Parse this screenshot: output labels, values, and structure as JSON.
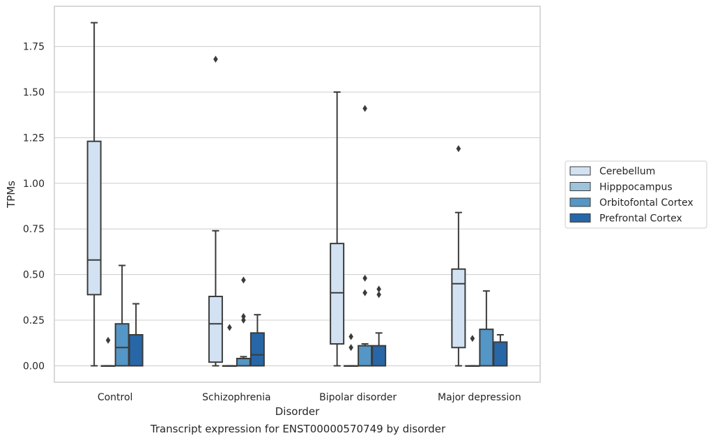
{
  "caption": "Transcript expression for ENST00000570749 by disorder",
  "chart_data": {
    "type": "box",
    "xlabel": "Disorder",
    "ylabel": "TPMs",
    "ylim": [
      -0.09,
      1.97
    ],
    "yticks": [
      0.0,
      0.25,
      0.5,
      0.75,
      1.0,
      1.25,
      1.5,
      1.75
    ],
    "ytick_labels": [
      "0.00",
      "0.25",
      "0.50",
      "0.75",
      "1.00",
      "1.25",
      "1.50",
      "1.75"
    ],
    "grid": "horizontal",
    "legend_position": "right",
    "categories": [
      "Control",
      "Schizophrenia",
      "Bipolar disorder",
      "Major depression"
    ],
    "series": [
      {
        "name": "Cerebellum",
        "color": "#d3e2f2",
        "boxes": [
          {
            "whislo": 0.0,
            "q1": 0.39,
            "med": 0.58,
            "q3": 1.23,
            "whishi": 1.88,
            "fliers": []
          },
          {
            "whislo": 0.0,
            "q1": 0.02,
            "med": 0.23,
            "q3": 0.38,
            "whishi": 0.74,
            "fliers": [
              1.68
            ]
          },
          {
            "whislo": 0.0,
            "q1": 0.12,
            "med": 0.4,
            "q3": 0.67,
            "whishi": 1.5,
            "fliers": []
          },
          {
            "whislo": 0.0,
            "q1": 0.1,
            "med": 0.45,
            "q3": 0.53,
            "whishi": 0.84,
            "fliers": [
              1.19
            ]
          }
        ]
      },
      {
        "name": "Hipppocampus",
        "color": "#9dc3dd",
        "boxes": [
          {
            "whislo": 0.0,
            "q1": 0.0,
            "med": 0.0,
            "q3": 0.0,
            "whishi": 0.0,
            "fliers": [
              0.14
            ]
          },
          {
            "whislo": 0.0,
            "q1": 0.0,
            "med": 0.0,
            "q3": 0.0,
            "whishi": 0.0,
            "fliers": [
              0.21
            ]
          },
          {
            "whislo": 0.0,
            "q1": 0.0,
            "med": 0.0,
            "q3": 0.0,
            "whishi": 0.0,
            "fliers": [
              0.16,
              0.1
            ]
          },
          {
            "whislo": 0.0,
            "q1": 0.0,
            "med": 0.0,
            "q3": 0.0,
            "whishi": 0.0,
            "fliers": [
              0.15
            ]
          }
        ]
      },
      {
        "name": "Orbitofontal Cortex",
        "color": "#5496c5",
        "boxes": [
          {
            "whislo": 0.0,
            "q1": 0.0,
            "med": 0.1,
            "q3": 0.23,
            "whishi": 0.55,
            "fliers": []
          },
          {
            "whislo": 0.0,
            "q1": 0.0,
            "med": 0.0,
            "q3": 0.04,
            "whishi": 0.05,
            "fliers": [
              0.47,
              0.27,
              0.25
            ]
          },
          {
            "whislo": 0.0,
            "q1": 0.0,
            "med": 0.0,
            "q3": 0.11,
            "whishi": 0.12,
            "fliers": [
              1.41,
              0.48,
              0.4
            ]
          },
          {
            "whislo": 0.0,
            "q1": 0.0,
            "med": 0.0,
            "q3": 0.2,
            "whishi": 0.41,
            "fliers": []
          }
        ]
      },
      {
        "name": "Prefrontal Cortex",
        "color": "#2767a8",
        "boxes": [
          {
            "whislo": 0.0,
            "q1": 0.0,
            "med": 0.0,
            "q3": 0.17,
            "whishi": 0.34,
            "fliers": []
          },
          {
            "whislo": 0.0,
            "q1": 0.0,
            "med": 0.06,
            "q3": 0.18,
            "whishi": 0.28,
            "fliers": []
          },
          {
            "whislo": 0.0,
            "q1": 0.0,
            "med": 0.0,
            "q3": 0.11,
            "whishi": 0.18,
            "fliers": [
              0.42,
              0.39
            ]
          },
          {
            "whislo": 0.0,
            "q1": 0.0,
            "med": 0.0,
            "q3": 0.13,
            "whishi": 0.17,
            "fliers": []
          }
        ]
      }
    ]
  }
}
